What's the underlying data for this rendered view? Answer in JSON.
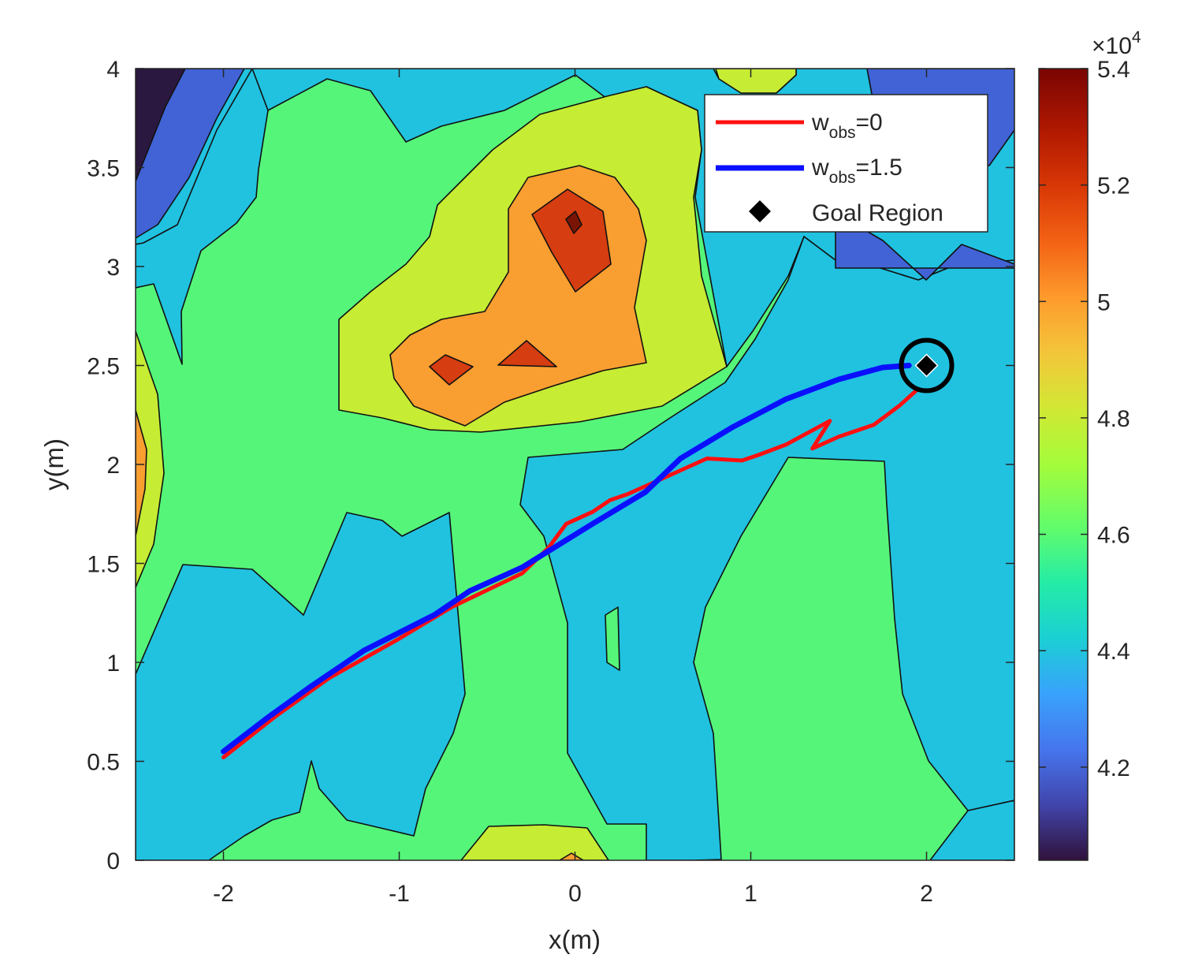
{
  "chart_data": {
    "type": "contour",
    "xlabel": "x(m)",
    "ylabel": "y(m)",
    "xlim": [
      -2.5,
      2.5
    ],
    "ylim": [
      0,
      4
    ],
    "xticks": [
      -2,
      -1,
      0,
      1,
      2
    ],
    "xtick_labels": [
      "-2",
      "-1",
      "0",
      "1",
      "2"
    ],
    "yticks": [
      0,
      0.5,
      1,
      1.5,
      2,
      2.5,
      3,
      3.5,
      4
    ],
    "ytick_labels": [
      "0",
      "0.5",
      "1",
      "1.5",
      "2",
      "2.5",
      "3",
      "3.5",
      "4"
    ],
    "grid": false,
    "legend_position": "top-right",
    "colorbar": {
      "min": 40400,
      "max": 54000,
      "ticks": [
        42000,
        44000,
        46000,
        48000,
        50000,
        52000,
        54000
      ],
      "tick_labels": [
        "4.2",
        "4.4",
        "4.6",
        "4.8",
        "5",
        "5.2",
        "5.4"
      ],
      "exponent_label": "×10",
      "exponent_value": "4",
      "colormap": "turbo"
    },
    "contour_colors": {
      "level_1_dark": "#2a1840",
      "level_2": "#4163d6",
      "level_3": "#20c2e0",
      "level_4": "#55f57a",
      "level_5": "#c6ec34",
      "level_6": "#f99e30",
      "level_7": "#d63d10",
      "level_8": "#7a1404"
    },
    "series": [
      {
        "name": "w",
        "name_sub": "obs",
        "name_suffix": "=0",
        "color": "#ff1010",
        "points": [
          [
            -2.0,
            0.52
          ],
          [
            -1.7,
            0.73
          ],
          [
            -1.4,
            0.92
          ],
          [
            -1.0,
            1.12
          ],
          [
            -0.7,
            1.28
          ],
          [
            -0.3,
            1.45
          ],
          [
            -0.15,
            1.58
          ],
          [
            -0.05,
            1.7
          ],
          [
            0.1,
            1.76
          ],
          [
            0.2,
            1.82
          ],
          [
            0.3,
            1.85
          ],
          [
            0.5,
            1.93
          ],
          [
            0.75,
            2.03
          ],
          [
            0.95,
            2.02
          ],
          [
            1.05,
            2.05
          ],
          [
            1.2,
            2.1
          ],
          [
            1.45,
            2.22
          ],
          [
            1.35,
            2.08
          ],
          [
            1.5,
            2.14
          ],
          [
            1.7,
            2.2
          ],
          [
            1.85,
            2.3
          ],
          [
            1.95,
            2.38
          ]
        ]
      },
      {
        "name": "w",
        "name_sub": "obs",
        "name_suffix": "=1.5",
        "color": "#0a10ff",
        "points": [
          [
            -2.0,
            0.55
          ],
          [
            -1.75,
            0.72
          ],
          [
            -1.5,
            0.88
          ],
          [
            -1.2,
            1.06
          ],
          [
            -0.8,
            1.24
          ],
          [
            -0.6,
            1.36
          ],
          [
            -0.3,
            1.48
          ],
          [
            -0.1,
            1.59
          ],
          [
            0.1,
            1.7
          ],
          [
            0.4,
            1.86
          ],
          [
            0.6,
            2.03
          ],
          [
            0.9,
            2.19
          ],
          [
            1.2,
            2.33
          ],
          [
            1.5,
            2.43
          ],
          [
            1.75,
            2.49
          ],
          [
            1.9,
            2.5
          ]
        ]
      }
    ],
    "goal": {
      "label": "Goal Region",
      "x": 2.0,
      "y": 2.5
    }
  }
}
